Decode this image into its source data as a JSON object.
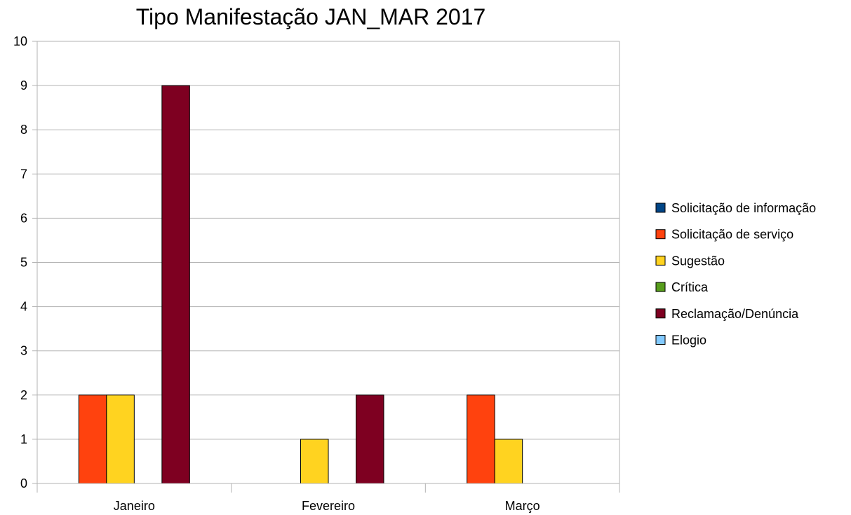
{
  "chart_data": {
    "type": "bar",
    "title": "Tipo Manifestação JAN_MAR 2017",
    "xlabel": "",
    "ylabel": "",
    "categories": [
      "Janeiro",
      "Fevereiro",
      "Março"
    ],
    "ylim": [
      0,
      10
    ],
    "yticks": [
      0,
      1,
      2,
      3,
      4,
      5,
      6,
      7,
      8,
      9,
      10
    ],
    "grid": true,
    "legend_position": "right",
    "series": [
      {
        "name": "Solicitação de informação",
        "color": "#004586",
        "values": [
          0,
          0,
          0
        ]
      },
      {
        "name": "Solicitação de serviço",
        "color": "#ff420e",
        "values": [
          2,
          0,
          2
        ]
      },
      {
        "name": "Sugestão",
        "color": "#ffd320",
        "values": [
          2,
          1,
          1
        ]
      },
      {
        "name": "Crítica",
        "color": "#579d1c",
        "values": [
          0,
          0,
          0
        ]
      },
      {
        "name": "Reclamação/Denúncia",
        "color": "#7e0021",
        "values": [
          9,
          2,
          0
        ]
      },
      {
        "name": "Elogio",
        "color": "#83caff",
        "values": [
          0,
          0,
          0
        ]
      }
    ]
  }
}
